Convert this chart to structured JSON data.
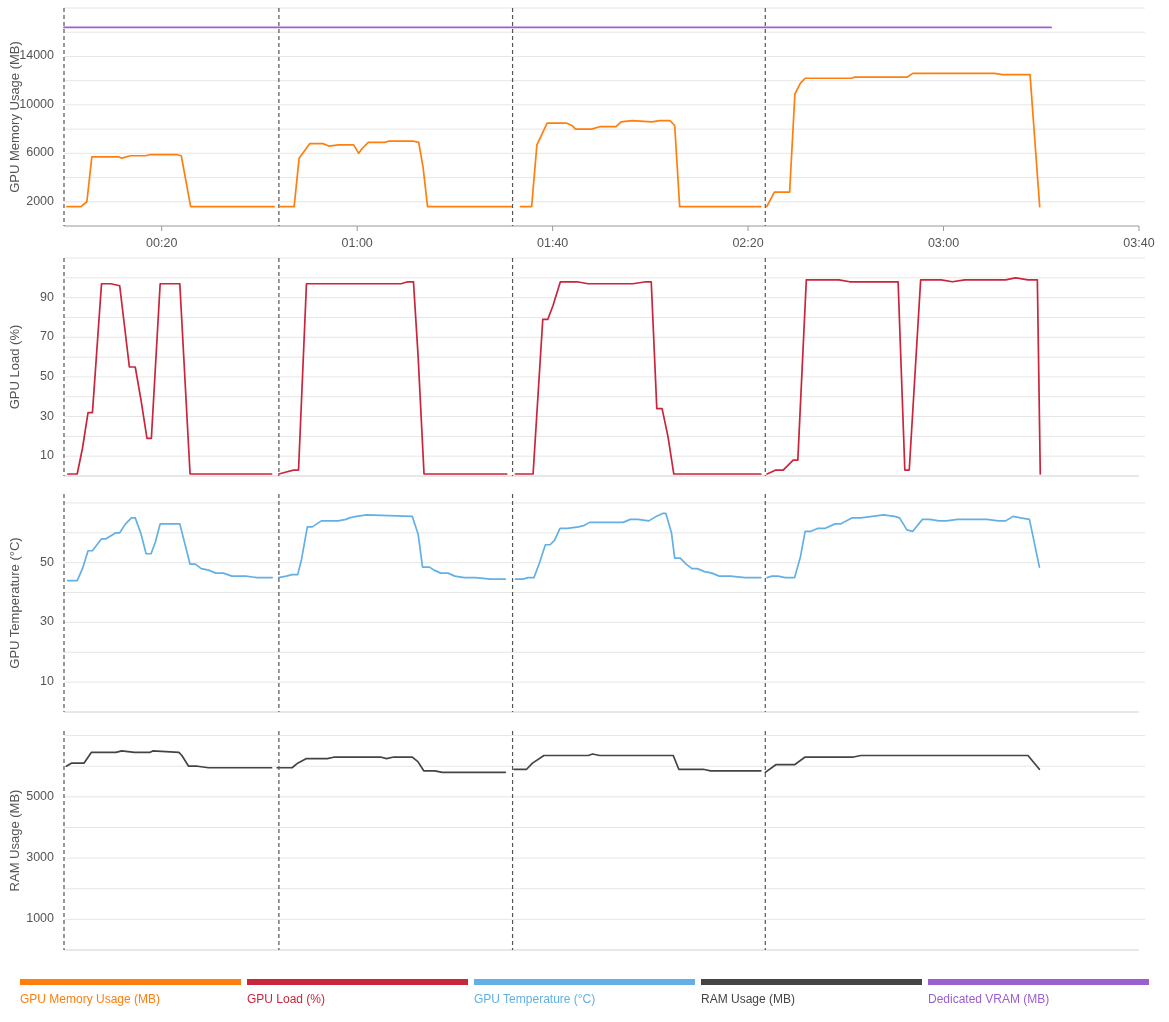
{
  "chart_data": [
    {
      "type": "line",
      "ylabel": "GPU Memory Usage (MB)",
      "xlim": [
        0,
        3.6667
      ],
      "xticks": [
        {
          "value": 0.3333,
          "label": "00:20"
        },
        {
          "value": 1,
          "label": "01:00"
        },
        {
          "value": 1.6667,
          "label": "01:40"
        },
        {
          "value": 2.3333,
          "label": "02:20"
        },
        {
          "value": 3,
          "label": "03:00"
        },
        {
          "value": 3.6667,
          "label": "03:40"
        }
      ],
      "ylim": [
        0,
        18000
      ],
      "yticks": [
        2000,
        {
          "value": 4000,
          "label": null
        },
        6000,
        {
          "value": 8000,
          "label": null
        },
        10000,
        {
          "value": 12000,
          "label": null
        },
        14000,
        {
          "value": 16000,
          "label": null
        },
        {
          "value": 18000,
          "label": null
        }
      ],
      "grid": "y",
      "legend": "bottom",
      "ref_lines": [
        {
          "axis": "x",
          "value": 0,
          "color": "#555555",
          "line_style": "dashed"
        },
        {
          "axis": "x",
          "value": 0.733,
          "color": "#555555",
          "line_style": "dashed"
        },
        {
          "axis": "x",
          "value": 1.53,
          "color": "#555555",
          "line_style": "dashed"
        },
        {
          "axis": "x",
          "value": 2.392,
          "color": "#555555",
          "line_style": "dashed"
        }
      ],
      "series": [
        {
          "name": "GPU Memory Usage (MB)",
          "color": "#ff7f0e",
          "x": [
            0.01,
            0.058,
            0.078,
            0.095,
            0.187,
            0.197,
            0.227,
            0.278,
            0.295,
            0.383,
            0.4,
            0.432,
            0.717,
            0.725,
            0.738,
            0.785,
            0.802,
            0.838,
            0.883,
            0.903,
            0.937,
            0.988,
            1.005,
            1.017,
            1.038,
            1.093,
            1.107,
            1.192,
            1.21,
            1.225,
            1.24,
            1.527,
            1.54,
            1.557,
            1.595,
            1.613,
            1.648,
            1.713,
            1.732,
            1.745,
            1.8,
            1.827,
            1.883,
            1.9,
            1.938,
            2.005,
            2.032,
            2.067,
            2.083,
            2.1,
            2.377,
            2.385,
            2.397,
            2.423,
            2.475,
            2.493,
            2.512,
            2.528,
            2.687,
            2.697,
            2.877,
            2.895,
            3.173,
            3.2,
            3.295,
            3.328
          ],
          "values": [
            1600,
            1600,
            2000,
            5700,
            5700,
            5600,
            5800,
            5800,
            5900,
            5900,
            5800,
            1600,
            1600,
            null,
            1600,
            1600,
            5600,
            6800,
            6800,
            6600,
            6700,
            6700,
            6000,
            6400,
            6900,
            6900,
            7000,
            7000,
            6900,
            4800,
            1600,
            1600,
            null,
            1600,
            1600,
            6700,
            8500,
            8500,
            8300,
            8000,
            8000,
            8200,
            8200,
            8600,
            8700,
            8600,
            8700,
            8700,
            8300,
            1600,
            1600,
            null,
            1600,
            2800,
            2800,
            10900,
            11800,
            12200,
            12200,
            12300,
            12300,
            12600,
            12600,
            12500,
            12500,
            1600
          ]
        },
        {
          "name": "Dedicated VRAM (MB)",
          "color": "#9b5fd0",
          "x": [
            0,
            3.367
          ],
          "values": [
            16400,
            16400
          ]
        }
      ]
    },
    {
      "type": "line",
      "ylabel": "GPU Load (%)",
      "xlim": [
        0,
        3.6667
      ],
      "ylim": [
        0,
        110
      ],
      "yticks": [
        10,
        {
          "value": 20,
          "label": null
        },
        30,
        {
          "value": 40,
          "label": null
        },
        50,
        {
          "value": 60,
          "label": null
        },
        70,
        {
          "value": 80,
          "label": null
        },
        90,
        {
          "value": 100,
          "label": null
        },
        {
          "value": 110,
          "label": null
        }
      ],
      "grid": "y",
      "legend": "bottom",
      "tick_labels": "y",
      "ref_lines": [
        {
          "axis": "x",
          "value": 0,
          "color": "#555555",
          "line_style": "dashed"
        },
        {
          "axis": "x",
          "value": 0.733,
          "color": "#555555",
          "line_style": "dashed"
        },
        {
          "axis": "x",
          "value": 1.53,
          "color": "#555555",
          "line_style": "dashed"
        },
        {
          "axis": "x",
          "value": 2.392,
          "color": "#555555",
          "line_style": "dashed"
        }
      ],
      "series": [
        {
          "name": "GPU Load (%)",
          "color": "#c9253d",
          "x": [
            0.013,
            0.045,
            0.063,
            0.082,
            0.097,
            0.128,
            0.16,
            0.19,
            0.223,
            0.243,
            0.263,
            0.283,
            0.298,
            0.328,
            0.395,
            0.43,
            0.708,
            0.725,
            0.733,
            0.758,
            0.783,
            0.8,
            0.827,
            1.15,
            1.172,
            1.192,
            1.208,
            1.228,
            1.51,
            1.525,
            1.54,
            1.6,
            1.633,
            1.65,
            1.668,
            1.693,
            1.75,
            1.788,
            1.94,
            1.985,
            2.003,
            2.022,
            2.04,
            2.06,
            2.08,
            2.377,
            2.385,
            2.398,
            2.428,
            2.453,
            2.487,
            2.503,
            2.532,
            2.643,
            2.68,
            2.845,
            2.868,
            2.883,
            2.922,
            2.992,
            3.03,
            3.073,
            3.212,
            3.245,
            3.288,
            3.32,
            3.33
          ],
          "values": [
            1,
            1,
            14,
            32,
            32,
            97,
            97,
            96,
            55,
            55,
            38,
            19,
            19,
            97,
            97,
            1,
            1,
            null,
            1,
            2,
            3,
            3,
            97,
            97,
            98,
            98,
            60,
            1,
            1,
            null,
            1,
            1,
            79,
            79,
            86,
            98,
            98,
            97,
            97,
            98,
            98,
            34,
            34,
            20,
            1,
            1,
            null,
            1,
            3,
            3,
            8,
            8,
            99,
            99,
            98,
            98,
            3,
            3,
            99,
            99,
            98,
            99,
            99,
            100,
            99,
            99,
            1
          ]
        }
      ]
    },
    {
      "type": "line",
      "ylabel": "GPU Temperature (°C)",
      "xlim": [
        0,
        3.6667
      ],
      "ylim": [
        0,
        73
      ],
      "yticks": [
        10,
        {
          "value": 20,
          "label": null
        },
        30,
        {
          "value": 40,
          "label": null
        },
        50,
        {
          "value": 60,
          "label": null
        },
        {
          "value": 70,
          "label": null
        }
      ],
      "grid": "y",
      "legend": "bottom",
      "tick_labels": "y",
      "ref_lines": [
        {
          "axis": "x",
          "value": 0,
          "color": "#555555",
          "line_style": "dashed"
        },
        {
          "axis": "x",
          "value": 0.733,
          "color": "#555555",
          "line_style": "dashed"
        },
        {
          "axis": "x",
          "value": 1.53,
          "color": "#555555",
          "line_style": "dashed"
        },
        {
          "axis": "x",
          "value": 2.392,
          "color": "#555555",
          "line_style": "dashed"
        }
      ],
      "series": [
        {
          "name": "GPU Temperature (°C)",
          "color": "#62b0e5",
          "x": [
            0.013,
            0.045,
            0.063,
            0.082,
            0.097,
            0.128,
            0.143,
            0.177,
            0.19,
            0.21,
            0.23,
            0.243,
            0.263,
            0.28,
            0.297,
            0.312,
            0.328,
            0.395,
            0.43,
            0.448,
            0.468,
            0.493,
            0.518,
            0.543,
            0.573,
            0.62,
            0.658,
            0.71,
            0.725,
            0.732,
            0.758,
            0.778,
            0.797,
            0.81,
            0.83,
            0.847,
            0.878,
            0.935,
            0.962,
            0.973,
            0.998,
            1.032,
            1.188,
            1.208,
            1.223,
            1.247,
            1.262,
            1.285,
            1.31,
            1.333,
            1.365,
            1.403,
            1.455,
            1.505,
            1.52,
            1.54,
            1.565,
            1.583,
            1.603,
            1.622,
            1.642,
            1.658,
            1.673,
            1.692,
            1.717,
            1.755,
            1.775,
            1.793,
            1.818,
            1.848,
            1.868,
            1.907,
            1.932,
            1.957,
            1.995,
            2.02,
            2.042,
            2.053,
            2.072,
            2.083,
            2.102,
            2.122,
            2.142,
            2.16,
            2.185,
            2.21,
            2.235,
            2.273,
            2.323,
            2.377,
            2.385,
            2.398,
            2.415,
            2.435,
            2.46,
            2.492,
            2.512,
            2.528,
            2.548,
            2.572,
            2.597,
            2.63,
            2.65,
            2.668,
            2.687,
            2.718,
            2.757,
            2.795,
            2.833,
            2.85,
            2.875,
            2.895,
            2.928,
            2.952,
            2.985,
            3.01,
            3.048,
            3.085,
            3.148,
            3.187,
            3.212,
            3.237,
            3.263,
            3.293,
            3.327
          ],
          "values": [
            44,
            44,
            48,
            54,
            54,
            58,
            58,
            60,
            60,
            63,
            65,
            65,
            59.5,
            53,
            53,
            57,
            63,
            63,
            49.5,
            49.5,
            48,
            47.5,
            46.5,
            46.5,
            45.5,
            45.5,
            45,
            45,
            null,
            45,
            45.5,
            46,
            46,
            51,
            62,
            62,
            64,
            64,
            64.5,
            65,
            65.5,
            66,
            65.5,
            59.5,
            48.5,
            48.5,
            47.5,
            46.5,
            46.5,
            45.5,
            45,
            45,
            44.5,
            44.5,
            null,
            44.5,
            44.5,
            45,
            45,
            50,
            56,
            56,
            57.5,
            61.5,
            61.5,
            62,
            62.5,
            63.5,
            63.5,
            63.5,
            63.5,
            63.5,
            64.5,
            64.5,
            64,
            65.5,
            66.5,
            66.5,
            60,
            51.5,
            51.5,
            49.5,
            48,
            48,
            47,
            46.5,
            45.5,
            45.5,
            45,
            45,
            null,
            45,
            45.5,
            45.5,
            45,
            45,
            52,
            60.5,
            60.5,
            61.5,
            61.5,
            63,
            63,
            64,
            65,
            65,
            65.5,
            66,
            65.5,
            65,
            61,
            60.5,
            64.5,
            64.5,
            64,
            64,
            64.5,
            64.5,
            64.5,
            64,
            64,
            65.5,
            65,
            64.5,
            48.5
          ]
        }
      ]
    },
    {
      "type": "line",
      "ylabel": "RAM Usage (MB)",
      "xlim": [
        0,
        3.6667
      ],
      "ylim": [
        0,
        7150
      ],
      "yticks": [
        1000,
        {
          "value": 2000,
          "label": null
        },
        3000,
        {
          "value": 4000,
          "label": null
        },
        5000,
        {
          "value": 6000,
          "label": null
        },
        {
          "value": 7000,
          "label": null
        }
      ],
      "grid": "y",
      "legend": "bottom",
      "tick_labels": "y",
      "ref_lines": [
        {
          "axis": "x",
          "value": 0,
          "color": "#555555",
          "line_style": "dashed"
        },
        {
          "axis": "x",
          "value": 0.733,
          "color": "#555555",
          "line_style": "dashed"
        },
        {
          "axis": "x",
          "value": 1.53,
          "color": "#555555",
          "line_style": "dashed"
        },
        {
          "axis": "x",
          "value": 2.392,
          "color": "#555555",
          "line_style": "dashed"
        }
      ],
      "series": [
        {
          "name": "RAM Usage (MB)",
          "color": "#444444",
          "x": [
            0.008,
            0.025,
            0.068,
            0.093,
            0.177,
            0.197,
            0.24,
            0.292,
            0.303,
            0.392,
            0.402,
            0.425,
            0.455,
            0.493,
            0.708,
            0.722,
            0.727,
            0.778,
            0.797,
            0.827,
            0.898,
            0.923,
            1.08,
            1.1,
            1.125,
            1.188,
            1.207,
            1.227,
            1.265,
            1.29,
            1.505,
            1.518,
            1.535,
            1.578,
            1.598,
            1.637,
            1.788,
            1.803,
            1.827,
            2.078,
            2.097,
            2.18,
            2.205,
            2.377,
            2.385,
            2.392,
            2.428,
            2.492,
            2.528,
            2.693,
            2.718,
            3.288,
            3.327
          ],
          "values": [
            6000,
            6100,
            6100,
            6450,
            6450,
            6500,
            6450,
            6450,
            6500,
            6450,
            6350,
            6000,
            6000,
            5950,
            5950,
            null,
            5950,
            5950,
            6100,
            6250,
            6250,
            6300,
            6300,
            6250,
            6300,
            6300,
            6150,
            5850,
            5850,
            5800,
            5800,
            null,
            5900,
            5900,
            6100,
            6350,
            6350,
            6400,
            6350,
            6350,
            5900,
            5900,
            5850,
            5850,
            null,
            5800,
            6050,
            6050,
            6300,
            6300,
            6350,
            6350,
            5900
          ]
        }
      ]
    }
  ]
}
